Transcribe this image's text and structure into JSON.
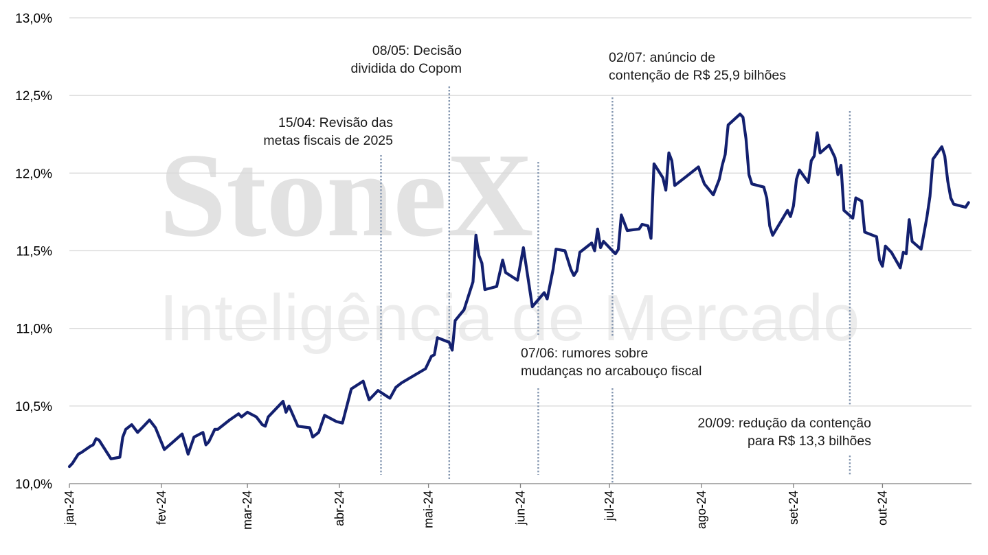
{
  "watermark": {
    "brand": "StoneX",
    "tagline": "Inteligência de Mercado"
  },
  "colors": {
    "line": "#13206f",
    "grid": "#d9d9d9",
    "event_line": "#8496b0",
    "axis": "#7f7f7f"
  },
  "chart_data": {
    "type": "line",
    "title": "",
    "xlabel": "",
    "ylabel": "",
    "ylim": [
      10.0,
      13.0
    ],
    "y_ticks": [
      10.0,
      10.5,
      11.0,
      11.5,
      12.0,
      12.5,
      13.0
    ],
    "y_tick_labels": [
      "10,0%",
      "10,5%",
      "11,0%",
      "11,5%",
      "12,0%",
      "12,5%",
      "13,0%"
    ],
    "x_tick_labels": [
      "jan-24",
      "fev-24",
      "mar-24",
      "abr-24",
      "mai-24",
      "jun-24",
      "jul-24",
      "ago-24",
      "set-24",
      "out-24"
    ],
    "x_ticks": [
      "2024-01-01",
      "2024-02-01",
      "2024-03-01",
      "2024-04-01",
      "2024-05-01",
      "2024-06-01",
      "2024-07-01",
      "2024-08-01",
      "2024-09-01",
      "2024-10-01"
    ],
    "x_range": [
      "2024-01-01",
      "2024-10-31"
    ],
    "grid": "horizontal",
    "series": [
      {
        "points": [
          [
            "2024-01-01",
            10.11
          ],
          [
            "2024-01-02",
            10.13
          ],
          [
            "2024-01-03",
            10.16
          ],
          [
            "2024-01-04",
            10.19
          ],
          [
            "2024-01-05",
            10.2
          ],
          [
            "2024-01-08",
            10.24
          ],
          [
            "2024-01-09",
            10.25
          ],
          [
            "2024-01-10",
            10.29
          ],
          [
            "2024-01-11",
            10.28
          ],
          [
            "2024-01-12",
            10.25
          ],
          [
            "2024-01-15",
            10.16
          ],
          [
            "2024-01-18",
            10.17
          ],
          [
            "2024-01-19",
            10.3
          ],
          [
            "2024-01-20",
            10.35
          ],
          [
            "2024-01-22",
            10.38
          ],
          [
            "2024-01-24",
            10.33
          ],
          [
            "2024-01-26",
            10.37
          ],
          [
            "2024-01-28",
            10.41
          ],
          [
            "2024-01-30",
            10.36
          ],
          [
            "2024-02-02",
            10.22
          ],
          [
            "2024-02-05",
            10.27
          ],
          [
            "2024-02-08",
            10.32
          ],
          [
            "2024-02-10",
            10.19
          ],
          [
            "2024-02-12",
            10.3
          ],
          [
            "2024-02-15",
            10.33
          ],
          [
            "2024-02-16",
            10.25
          ],
          [
            "2024-02-17",
            10.27
          ],
          [
            "2024-02-19",
            10.35
          ],
          [
            "2024-02-20",
            10.35
          ],
          [
            "2024-02-24",
            10.41
          ],
          [
            "2024-02-27",
            10.45
          ],
          [
            "2024-02-28",
            10.43
          ],
          [
            "2024-03-01",
            10.46
          ],
          [
            "2024-03-04",
            10.43
          ],
          [
            "2024-03-06",
            10.38
          ],
          [
            "2024-03-07",
            10.37
          ],
          [
            "2024-03-08",
            10.43
          ],
          [
            "2024-03-13",
            10.53
          ],
          [
            "2024-03-14",
            10.46
          ],
          [
            "2024-03-15",
            10.5
          ],
          [
            "2024-03-18",
            10.37
          ],
          [
            "2024-03-22",
            10.36
          ],
          [
            "2024-03-23",
            10.3
          ],
          [
            "2024-03-25",
            10.33
          ],
          [
            "2024-03-27",
            10.44
          ],
          [
            "2024-03-31",
            10.4
          ],
          [
            "2024-04-02",
            10.39
          ],
          [
            "2024-04-05",
            10.61
          ],
          [
            "2024-04-09",
            10.66
          ],
          [
            "2024-04-10",
            10.6
          ],
          [
            "2024-04-11",
            10.54
          ],
          [
            "2024-04-14",
            10.6
          ],
          [
            "2024-04-18",
            10.55
          ],
          [
            "2024-04-20",
            10.62
          ],
          [
            "2024-04-22",
            10.65
          ],
          [
            "2024-04-30",
            10.74
          ],
          [
            "2024-05-02",
            10.82
          ],
          [
            "2024-05-03",
            10.83
          ],
          [
            "2024-05-04",
            10.94
          ],
          [
            "2024-05-08",
            10.91
          ],
          [
            "2024-05-09",
            10.86
          ],
          [
            "2024-05-10",
            11.05
          ],
          [
            "2024-05-13",
            11.12
          ],
          [
            "2024-05-16",
            11.3
          ],
          [
            "2024-05-17",
            11.6
          ],
          [
            "2024-05-18",
            11.47
          ],
          [
            "2024-05-19",
            11.42
          ],
          [
            "2024-05-20",
            11.25
          ],
          [
            "2024-05-24",
            11.27
          ],
          [
            "2024-05-26",
            11.44
          ],
          [
            "2024-05-27",
            11.36
          ],
          [
            "2024-05-31",
            11.31
          ],
          [
            "2024-06-02",
            11.52
          ],
          [
            "2024-06-05",
            11.14
          ],
          [
            "2024-06-09",
            11.23
          ],
          [
            "2024-06-10",
            11.19
          ],
          [
            "2024-06-12",
            11.38
          ],
          [
            "2024-06-13",
            11.51
          ],
          [
            "2024-06-16",
            11.5
          ],
          [
            "2024-06-18",
            11.38
          ],
          [
            "2024-06-19",
            11.34
          ],
          [
            "2024-06-20",
            11.37
          ],
          [
            "2024-06-21",
            11.49
          ],
          [
            "2024-06-25",
            11.55
          ],
          [
            "2024-06-26",
            11.5
          ],
          [
            "2024-06-27",
            11.64
          ],
          [
            "2024-06-28",
            11.52
          ],
          [
            "2024-06-29",
            11.56
          ],
          [
            "2024-07-03",
            11.48
          ],
          [
            "2024-07-04",
            11.51
          ],
          [
            "2024-07-05",
            11.73
          ],
          [
            "2024-07-07",
            11.63
          ],
          [
            "2024-07-11",
            11.64
          ],
          [
            "2024-07-12",
            11.67
          ],
          [
            "2024-07-14",
            11.66
          ],
          [
            "2024-07-15",
            11.58
          ],
          [
            "2024-07-16",
            12.06
          ],
          [
            "2024-07-19",
            11.97
          ],
          [
            "2024-07-20",
            11.89
          ],
          [
            "2024-07-21",
            12.13
          ],
          [
            "2024-07-22",
            12.08
          ],
          [
            "2024-07-23",
            11.92
          ],
          [
            "2024-07-27",
            11.98
          ],
          [
            "2024-07-31",
            12.04
          ],
          [
            "2024-08-01",
            11.98
          ],
          [
            "2024-08-02",
            11.93
          ],
          [
            "2024-08-05",
            11.86
          ],
          [
            "2024-08-07",
            11.96
          ],
          [
            "2024-08-08",
            12.05
          ],
          [
            "2024-08-09",
            12.12
          ],
          [
            "2024-08-10",
            12.31
          ],
          [
            "2024-08-14",
            12.38
          ],
          [
            "2024-08-15",
            12.36
          ],
          [
            "2024-08-16",
            12.22
          ],
          [
            "2024-08-17",
            11.99
          ],
          [
            "2024-08-18",
            11.93
          ],
          [
            "2024-08-22",
            11.91
          ],
          [
            "2024-08-23",
            11.84
          ],
          [
            "2024-08-24",
            11.66
          ],
          [
            "2024-08-25",
            11.6
          ],
          [
            "2024-08-30",
            11.76
          ],
          [
            "2024-08-31",
            11.72
          ],
          [
            "2024-09-01",
            11.79
          ],
          [
            "2024-09-02",
            11.96
          ],
          [
            "2024-09-03",
            12.02
          ],
          [
            "2024-09-06",
            11.94
          ],
          [
            "2024-09-07",
            12.08
          ],
          [
            "2024-09-08",
            12.11
          ],
          [
            "2024-09-09",
            12.26
          ],
          [
            "2024-09-10",
            12.13
          ],
          [
            "2024-09-13",
            12.18
          ],
          [
            "2024-09-15",
            12.1
          ],
          [
            "2024-09-16",
            11.99
          ],
          [
            "2024-09-17",
            12.05
          ],
          [
            "2024-09-18",
            11.76
          ],
          [
            "2024-09-21",
            11.71
          ],
          [
            "2024-09-22",
            11.84
          ],
          [
            "2024-09-24",
            11.82
          ],
          [
            "2024-09-25",
            11.62
          ],
          [
            "2024-09-29",
            11.59
          ],
          [
            "2024-09-30",
            11.44
          ],
          [
            "2024-10-01",
            11.4
          ],
          [
            "2024-10-02",
            11.53
          ],
          [
            "2024-10-04",
            11.49
          ],
          [
            "2024-10-07",
            11.39
          ],
          [
            "2024-10-08",
            11.49
          ],
          [
            "2024-10-09",
            11.48
          ],
          [
            "2024-10-10",
            11.7
          ],
          [
            "2024-10-11",
            11.56
          ],
          [
            "2024-10-14",
            11.51
          ],
          [
            "2024-10-16",
            11.72
          ],
          [
            "2024-10-17",
            11.85
          ],
          [
            "2024-10-18",
            12.09
          ],
          [
            "2024-10-21",
            12.17
          ],
          [
            "2024-10-22",
            12.11
          ],
          [
            "2024-10-23",
            11.95
          ],
          [
            "2024-10-24",
            11.84
          ],
          [
            "2024-10-25",
            11.8
          ],
          [
            "2024-10-29",
            11.78
          ],
          [
            "2024-10-30",
            11.81
          ]
        ]
      }
    ],
    "annotations": [
      {
        "date": "2024-04-15",
        "text": [
          "15/04: Revisão das",
          "metas fiscais de 2025"
        ]
      },
      {
        "date": "2024-05-08",
        "text": [
          "08/05: Decisão",
          "dividida do Copom"
        ]
      },
      {
        "date": "2024-06-07",
        "text": [
          "07/06: rumores sobre",
          "mudanças no arcabouço fiscal"
        ]
      },
      {
        "date": "2024-07-02",
        "text": [
          "02/07: anúncio de",
          "contenção de R$ 25,9 bilhões"
        ]
      },
      {
        "date": "2024-09-20",
        "text": [
          "20/09: redução da contenção",
          "para R$ 13,3 bilhões"
        ]
      }
    ]
  }
}
